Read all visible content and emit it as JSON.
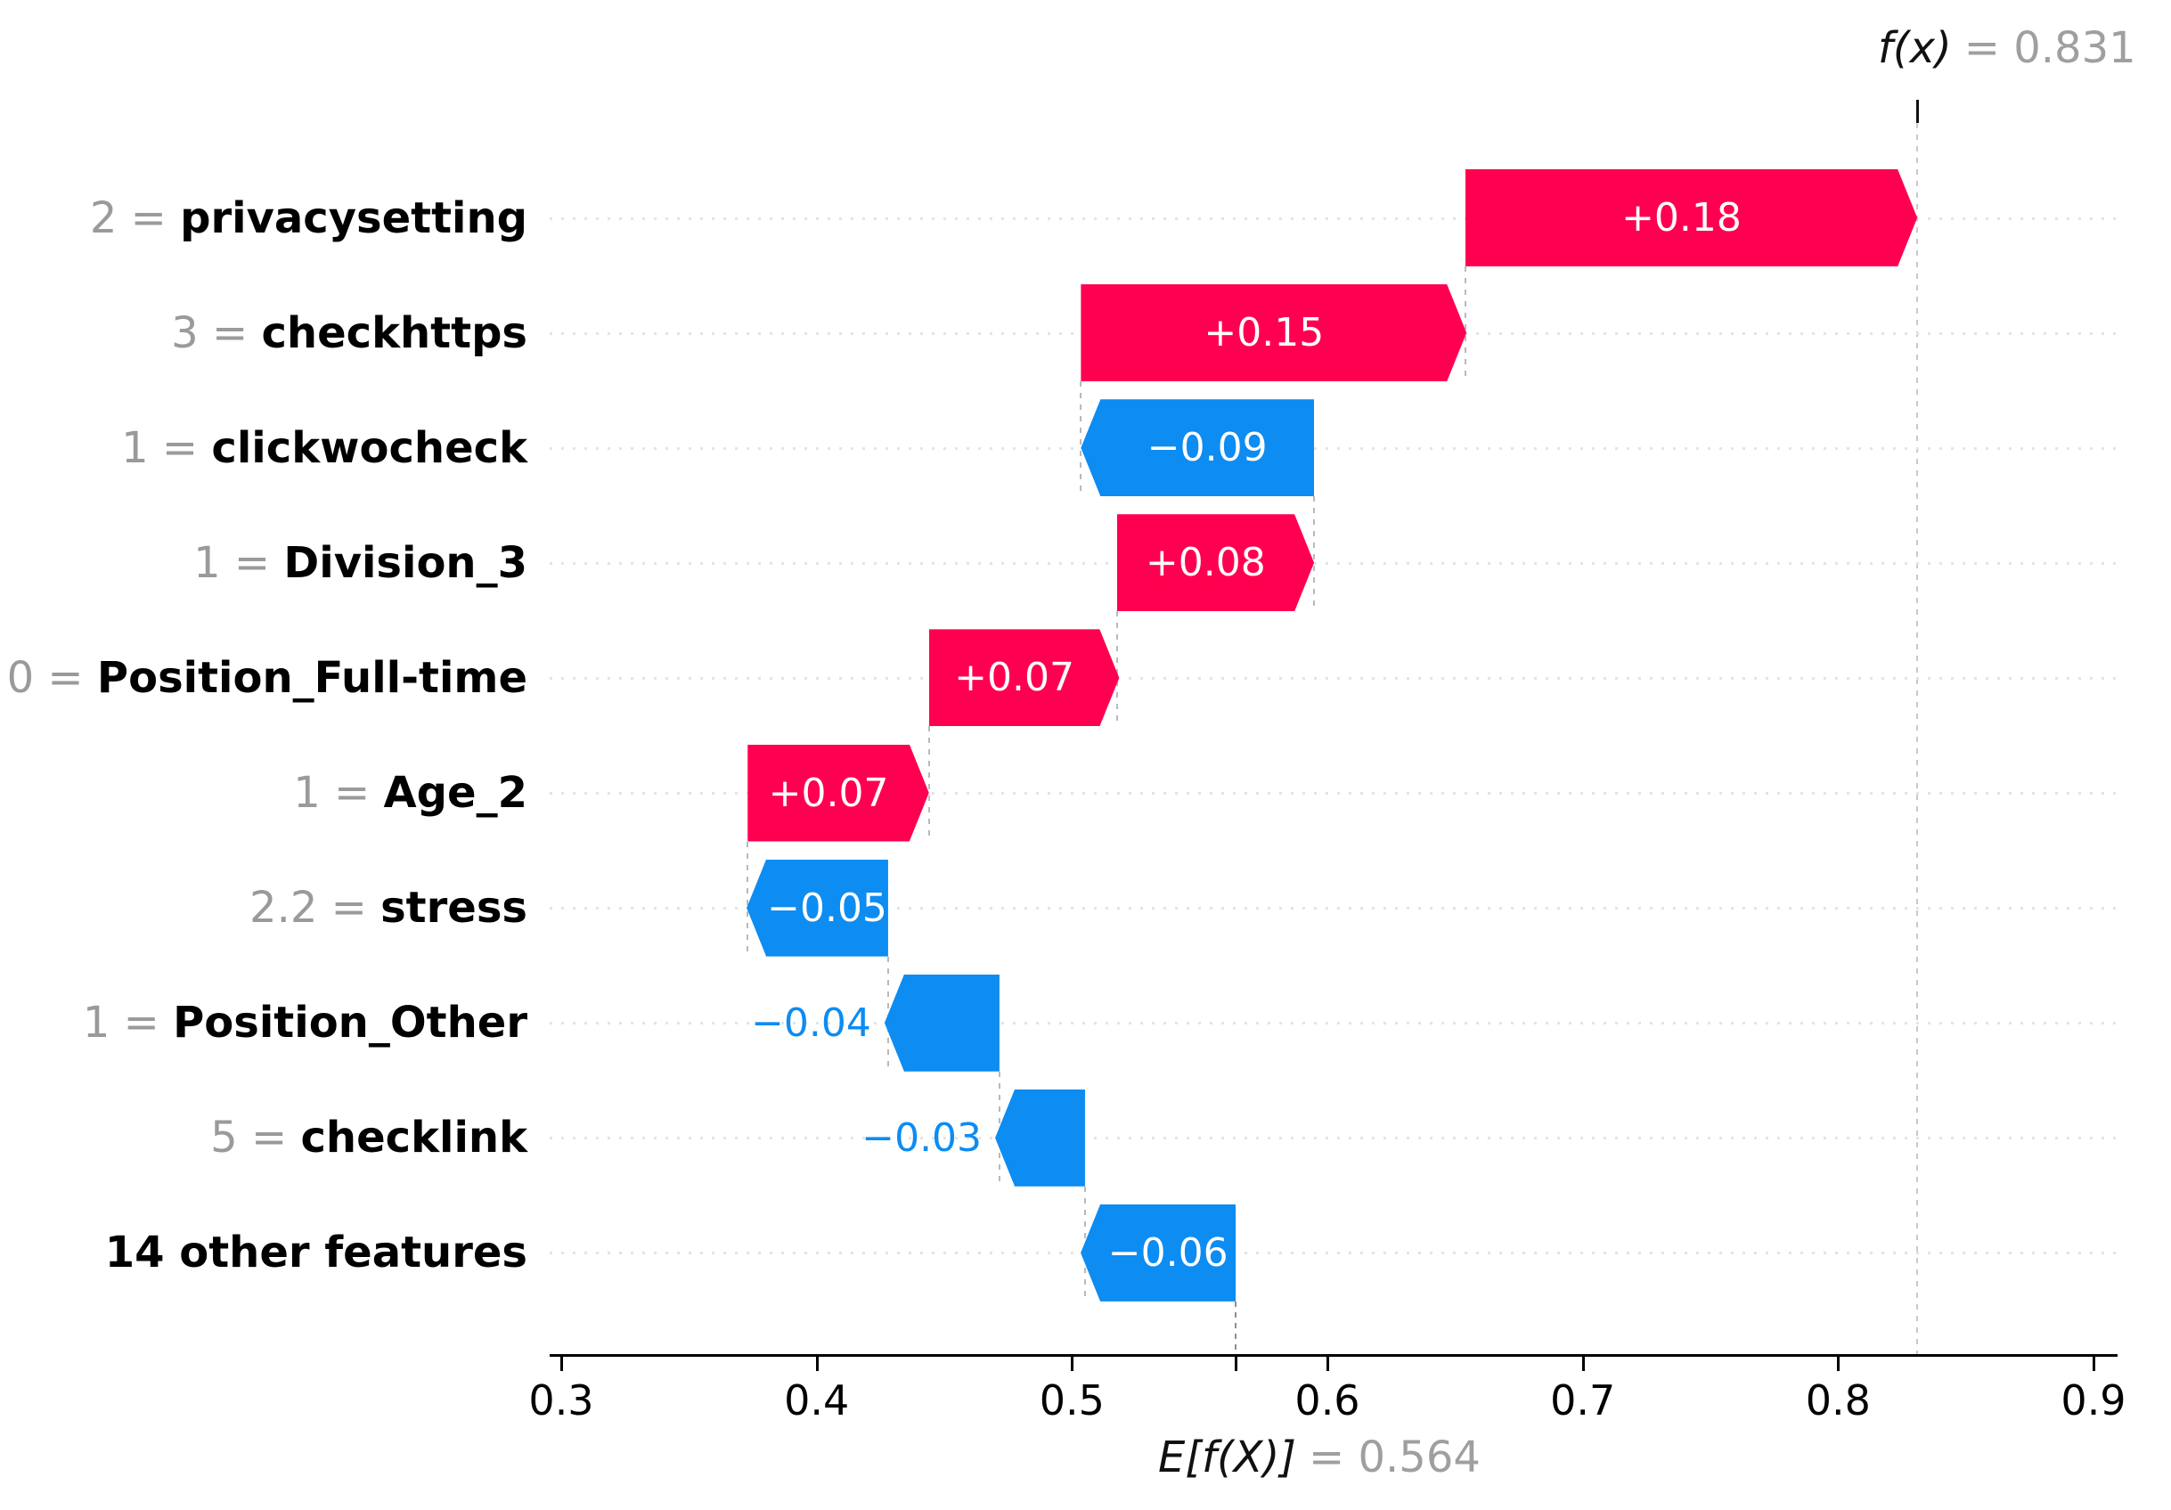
{
  "chart_data": {
    "type": "bar",
    "subtype": "shap-waterfall",
    "title": "",
    "xlabel": "",
    "ylabel": "",
    "grid": "dotted-row-guides",
    "fx": {
      "label": "f(x)",
      "value": 0.831,
      "value_text": "= 0.831"
    },
    "expected_value": {
      "label": "E[f(X)]",
      "value": 0.564,
      "value_text": "= 0.564"
    },
    "x_ticks": [
      "0.3",
      "0.4",
      "0.5",
      "0.6",
      "0.7",
      "0.8",
      "0.9"
    ],
    "xlim": [
      0.295,
      0.91
    ],
    "colors": {
      "positive": "#ff0050",
      "negative": "#0d8cf2",
      "muted_text": "#9a9a9a",
      "axis_text": "#000000"
    },
    "features": [
      {
        "value_label": "2",
        "name": "privacysetting",
        "contribution": 0.18,
        "contribution_text": "+0.18",
        "sign": "positive",
        "from": 0.654,
        "to": 0.831,
        "label_inside": true
      },
      {
        "value_label": "3",
        "name": "checkhttps",
        "contribution": 0.15,
        "contribution_text": "+0.15",
        "sign": "positive",
        "from": 0.5035,
        "to": 0.6545,
        "label_inside": true
      },
      {
        "value_label": "1",
        "name": "clickwocheck",
        "contribution": -0.09,
        "contribution_text": "−0.09",
        "sign": "negative",
        "from": 0.5035,
        "to": 0.5948,
        "label_inside": true
      },
      {
        "value_label": "1",
        "name": "Division_3",
        "contribution": 0.08,
        "contribution_text": "+0.08",
        "sign": "positive",
        "from": 0.5175,
        "to": 0.5948,
        "label_inside": true
      },
      {
        "value_label": "0",
        "name": "Position_Full-time",
        "contribution": 0.07,
        "contribution_text": "+0.07",
        "sign": "positive",
        "from": 0.444,
        "to": 0.5185,
        "label_inside": true
      },
      {
        "value_label": "1",
        "name": "Age_2",
        "contribution": 0.07,
        "contribution_text": "+0.07",
        "sign": "positive",
        "from": 0.373,
        "to": 0.444,
        "label_inside": true
      },
      {
        "value_label": "2.2",
        "name": "stress",
        "contribution": -0.05,
        "contribution_text": "−0.05",
        "sign": "negative",
        "from": 0.3726,
        "to": 0.428,
        "label_inside": true
      },
      {
        "value_label": "1",
        "name": "Position_Other",
        "contribution": -0.04,
        "contribution_text": "−0.04",
        "sign": "negative",
        "from": 0.4266,
        "to": 0.4716,
        "label_inside": false
      },
      {
        "value_label": "5",
        "name": "checklink",
        "contribution": -0.03,
        "contribution_text": "−0.03",
        "sign": "negative",
        "from": 0.4699,
        "to": 0.5051,
        "label_inside": false
      },
      {
        "value_label": "",
        "name": "14 other features",
        "contribution": -0.06,
        "contribution_text": "−0.06",
        "sign": "negative",
        "from": 0.5034,
        "to": 0.5642,
        "label_inside": true
      }
    ]
  }
}
